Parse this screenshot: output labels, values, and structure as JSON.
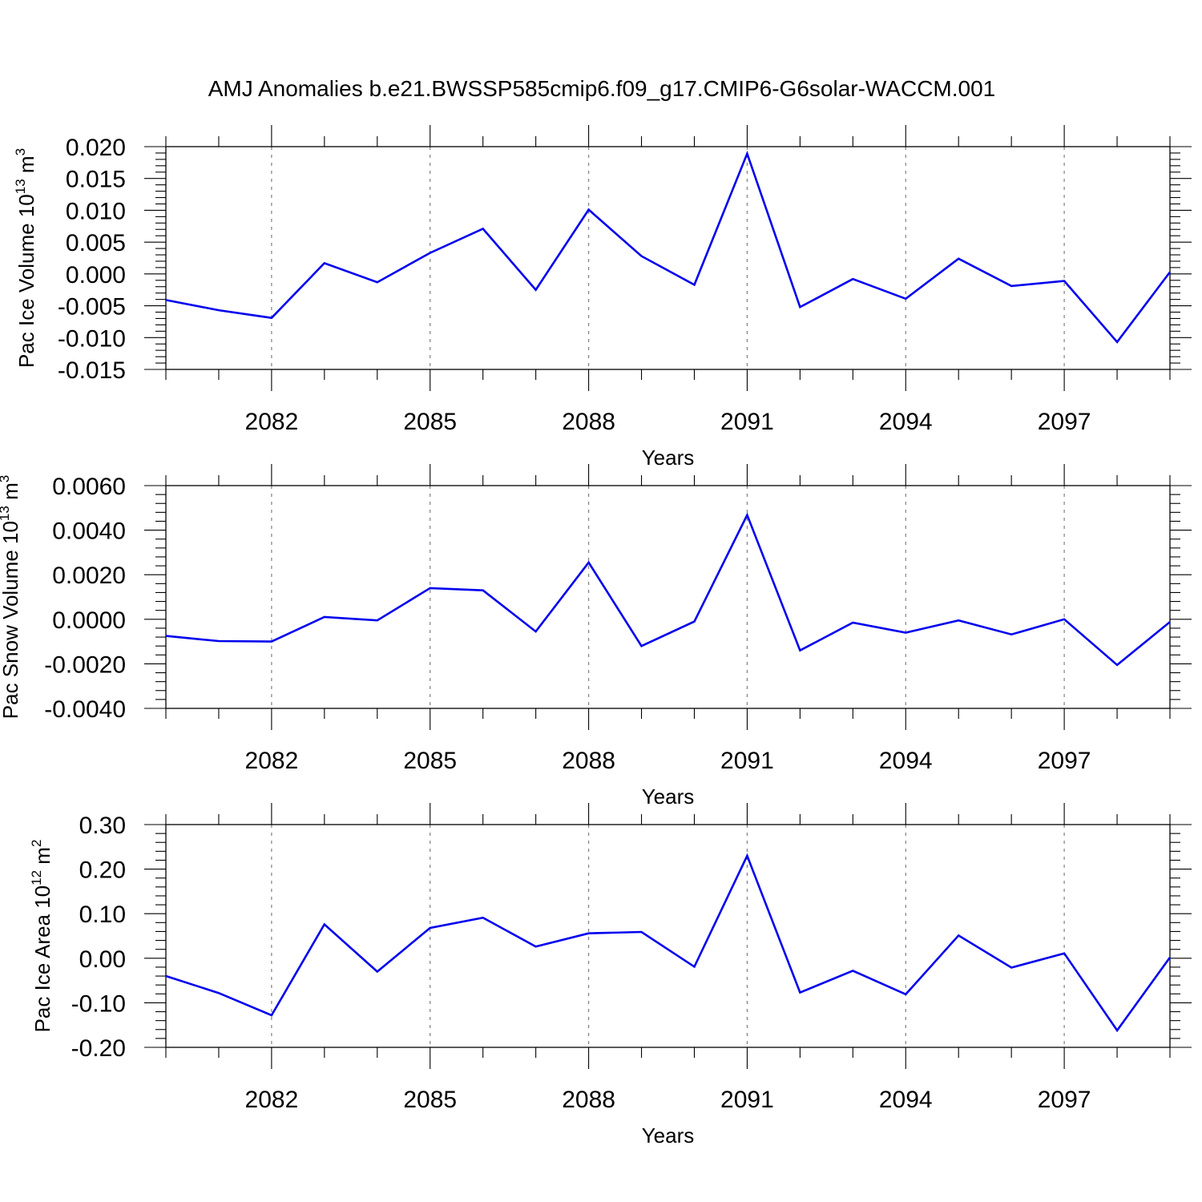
{
  "title": "AMJ Anomalies b.e21.BWSSP585cmip6.f09_g17.CMIP6-G6solar-WACCM.001",
  "line_color": "#0000ee",
  "chart_data": [
    {
      "type": "line",
      "xlabel": "Years",
      "ylabel": "Pac Ice Volume 10",
      "ylabel_exp": "13",
      "ylabel_unit": " m",
      "ylabel_unit_exp": "3",
      "xlim": [
        2080,
        2099
      ],
      "ylim": [
        -0.015,
        0.02
      ],
      "x_ticks": [
        2082,
        2085,
        2088,
        2091,
        2094,
        2097
      ],
      "y_ticks": [
        "-0.015",
        "-0.010",
        "-0.005",
        "0.000",
        "0.005",
        "0.010",
        "0.015",
        "0.020"
      ],
      "grid": "vertical-dashed",
      "x": [
        2080,
        2081,
        2082,
        2083,
        2084,
        2085,
        2086,
        2087,
        2088,
        2089,
        2090,
        2091,
        2092,
        2093,
        2094,
        2095,
        2096,
        2097,
        2098,
        2099
      ],
      "values": [
        -0.0041,
        -0.0057,
        -0.0069,
        0.0017,
        -0.0013,
        0.0033,
        0.0071,
        -0.0025,
        0.0101,
        0.0028,
        -0.0017,
        0.0189,
        -0.0052,
        -0.0008,
        -0.0039,
        0.0024,
        -0.0019,
        -0.0011,
        -0.0107,
        0.0003
      ]
    },
    {
      "type": "line",
      "xlabel": "Years",
      "ylabel": "Pac Snow Volume 10",
      "ylabel_exp": "13",
      "ylabel_unit": " m",
      "ylabel_unit_exp": "3",
      "xlim": [
        2080,
        2099
      ],
      "ylim": [
        -0.004,
        0.006
      ],
      "x_ticks": [
        2082,
        2085,
        2088,
        2091,
        2094,
        2097
      ],
      "y_ticks": [
        "-0.0040",
        "-0.0020",
        "0.0000",
        "0.0020",
        "0.0040",
        "0.0060"
      ],
      "grid": "vertical-dashed",
      "x": [
        2080,
        2081,
        2082,
        2083,
        2084,
        2085,
        2086,
        2087,
        2088,
        2089,
        2090,
        2091,
        2092,
        2093,
        2094,
        2095,
        2096,
        2097,
        2098,
        2099
      ],
      "values": [
        -0.00075,
        -0.00098,
        -0.001,
        0.0001,
        -5e-05,
        0.0014,
        0.0013,
        -0.00055,
        0.00255,
        -0.0012,
        -0.0001,
        0.00468,
        -0.0014,
        -0.00015,
        -0.0006,
        -5e-05,
        -0.00068,
        0.0,
        -0.00205,
        -0.00012
      ]
    },
    {
      "type": "line",
      "xlabel": "Years",
      "ylabel": "Pac Ice Area 10",
      "ylabel_exp": "12",
      "ylabel_unit": " m",
      "ylabel_unit_exp": "2",
      "xlim": [
        2080,
        2099
      ],
      "ylim": [
        -0.2,
        0.3
      ],
      "x_ticks": [
        2082,
        2085,
        2088,
        2091,
        2094,
        2097
      ],
      "y_ticks": [
        "-0.20",
        "-0.10",
        "0.00",
        "0.10",
        "0.20",
        "0.30"
      ],
      "grid": "vertical-dashed",
      "x": [
        2080,
        2081,
        2082,
        2083,
        2084,
        2085,
        2086,
        2087,
        2088,
        2089,
        2090,
        2091,
        2092,
        2093,
        2094,
        2095,
        2096,
        2097,
        2098,
        2099
      ],
      "values": [
        -0.04,
        -0.078,
        -0.128,
        0.076,
        -0.03,
        0.068,
        0.091,
        0.026,
        0.056,
        0.059,
        -0.019,
        0.23,
        -0.077,
        -0.028,
        -0.081,
        0.051,
        -0.021,
        0.011,
        -0.162,
        0.002
      ]
    }
  ]
}
